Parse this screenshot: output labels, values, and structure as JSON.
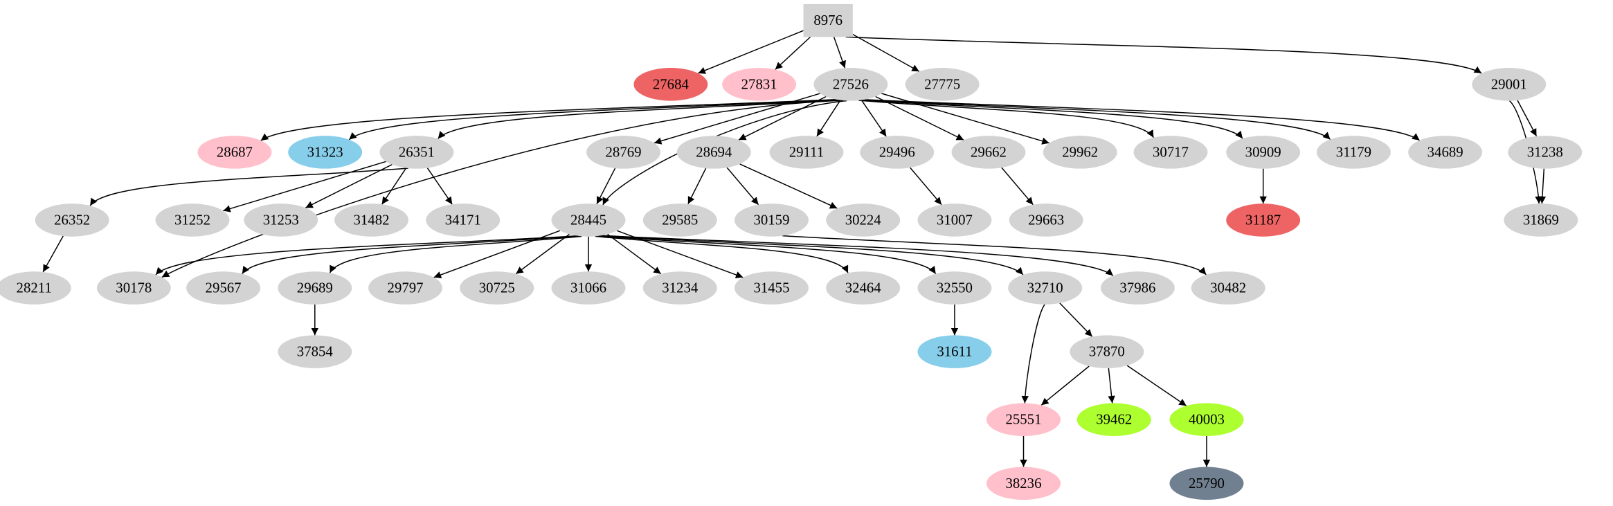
{
  "graph": {
    "root": "8976",
    "nodes": [
      {
        "id": "8976",
        "shape": "box",
        "color": "#D3D3D3"
      },
      {
        "id": "27684",
        "color": "#EE6363"
      },
      {
        "id": "27831",
        "color": "#FFC0CB"
      },
      {
        "id": "27526",
        "color": "#D3D3D3"
      },
      {
        "id": "27775",
        "color": "#D3D3D3"
      },
      {
        "id": "29001",
        "color": "#D3D3D3"
      },
      {
        "id": "28687",
        "color": "#FFC0CB"
      },
      {
        "id": "31323",
        "color": "#87CEEB"
      },
      {
        "id": "26351",
        "color": "#D3D3D3"
      },
      {
        "id": "28769",
        "color": "#D3D3D3"
      },
      {
        "id": "28694",
        "color": "#D3D3D3"
      },
      {
        "id": "29111",
        "color": "#D3D3D3"
      },
      {
        "id": "29496",
        "color": "#D3D3D3"
      },
      {
        "id": "29662",
        "color": "#D3D3D3"
      },
      {
        "id": "29962",
        "color": "#D3D3D3"
      },
      {
        "id": "30717",
        "color": "#D3D3D3"
      },
      {
        "id": "30909",
        "color": "#D3D3D3"
      },
      {
        "id": "31179",
        "color": "#D3D3D3"
      },
      {
        "id": "34689",
        "color": "#D3D3D3"
      },
      {
        "id": "31238",
        "color": "#D3D3D3"
      },
      {
        "id": "26352",
        "color": "#D3D3D3"
      },
      {
        "id": "31252",
        "color": "#D3D3D3"
      },
      {
        "id": "31253",
        "color": "#D3D3D3"
      },
      {
        "id": "31482",
        "color": "#D3D3D3"
      },
      {
        "id": "34171",
        "color": "#D3D3D3"
      },
      {
        "id": "28445",
        "color": "#D3D3D3"
      },
      {
        "id": "29585",
        "color": "#D3D3D3"
      },
      {
        "id": "30159",
        "color": "#D3D3D3"
      },
      {
        "id": "30224",
        "color": "#D3D3D3"
      },
      {
        "id": "31007",
        "color": "#D3D3D3"
      },
      {
        "id": "29663",
        "color": "#D3D3D3"
      },
      {
        "id": "31187",
        "color": "#EE6363"
      },
      {
        "id": "31869",
        "color": "#D3D3D3"
      },
      {
        "id": "28211",
        "color": "#D3D3D3"
      },
      {
        "id": "30178",
        "color": "#D3D3D3"
      },
      {
        "id": "29567",
        "color": "#D3D3D3"
      },
      {
        "id": "29689",
        "color": "#D3D3D3"
      },
      {
        "id": "29797",
        "color": "#D3D3D3"
      },
      {
        "id": "30725",
        "color": "#D3D3D3"
      },
      {
        "id": "31066",
        "color": "#D3D3D3"
      },
      {
        "id": "31234",
        "color": "#D3D3D3"
      },
      {
        "id": "31455",
        "color": "#D3D3D3"
      },
      {
        "id": "32464",
        "color": "#D3D3D3"
      },
      {
        "id": "32550",
        "color": "#D3D3D3"
      },
      {
        "id": "32710",
        "color": "#D3D3D3"
      },
      {
        "id": "37986",
        "color": "#D3D3D3"
      },
      {
        "id": "30482",
        "color": "#D3D3D3"
      },
      {
        "id": "37854",
        "color": "#D3D3D3"
      },
      {
        "id": "31611",
        "color": "#87CEEB"
      },
      {
        "id": "37870",
        "color": "#D3D3D3"
      },
      {
        "id": "25551",
        "color": "#FFC0CB"
      },
      {
        "id": "39462",
        "color": "#ADFF2F"
      },
      {
        "id": "40003",
        "color": "#ADFF2F"
      },
      {
        "id": "38236",
        "color": "#FFC0CB"
      },
      {
        "id": "25790",
        "color": "#708090"
      }
    ],
    "edges": [
      [
        "8976",
        "27684"
      ],
      [
        "8976",
        "27831"
      ],
      [
        "8976",
        "27526"
      ],
      [
        "8976",
        "27775"
      ],
      [
        "8976",
        "29001"
      ],
      [
        "27526",
        "28687"
      ],
      [
        "27526",
        "31323"
      ],
      [
        "27526",
        "26351"
      ],
      [
        "27526",
        "28445"
      ],
      [
        "27526",
        "30178"
      ],
      [
        "27526",
        "28769"
      ],
      [
        "27526",
        "28694"
      ],
      [
        "27526",
        "29111"
      ],
      [
        "27526",
        "29496"
      ],
      [
        "27526",
        "29662"
      ],
      [
        "27526",
        "29962"
      ],
      [
        "27526",
        "30717"
      ],
      [
        "27526",
        "30909"
      ],
      [
        "27526",
        "31179"
      ],
      [
        "27526",
        "34689"
      ],
      [
        "29001",
        "31238"
      ],
      [
        "29001",
        "31869"
      ],
      [
        "31238",
        "31869"
      ],
      [
        "26351",
        "26352"
      ],
      [
        "26351",
        "31252"
      ],
      [
        "26351",
        "31253"
      ],
      [
        "26351",
        "31482"
      ],
      [
        "26351",
        "34171"
      ],
      [
        "28769",
        "28445"
      ],
      [
        "28694",
        "29585"
      ],
      [
        "28694",
        "30159"
      ],
      [
        "28694",
        "30224"
      ],
      [
        "29496",
        "31007"
      ],
      [
        "29662",
        "29663"
      ],
      [
        "30909",
        "31187"
      ],
      [
        "26352",
        "28211"
      ],
      [
        "28445",
        "30178"
      ],
      [
        "28445",
        "29567"
      ],
      [
        "28445",
        "29689"
      ],
      [
        "28445",
        "29797"
      ],
      [
        "28445",
        "30725"
      ],
      [
        "28445",
        "31066"
      ],
      [
        "28445",
        "31234"
      ],
      [
        "28445",
        "31455"
      ],
      [
        "28445",
        "32464"
      ],
      [
        "28445",
        "32550"
      ],
      [
        "28445",
        "32710"
      ],
      [
        "28445",
        "37986"
      ],
      [
        "30159",
        "30482"
      ],
      [
        "29689",
        "37854"
      ],
      [
        "32550",
        "31611"
      ],
      [
        "32710",
        "25551"
      ],
      [
        "32710",
        "37870"
      ],
      [
        "37870",
        "25551"
      ],
      [
        "37870",
        "39462"
      ],
      [
        "37870",
        "40003"
      ],
      [
        "25551",
        "38236"
      ],
      [
        "40003",
        "25790"
      ]
    ]
  }
}
